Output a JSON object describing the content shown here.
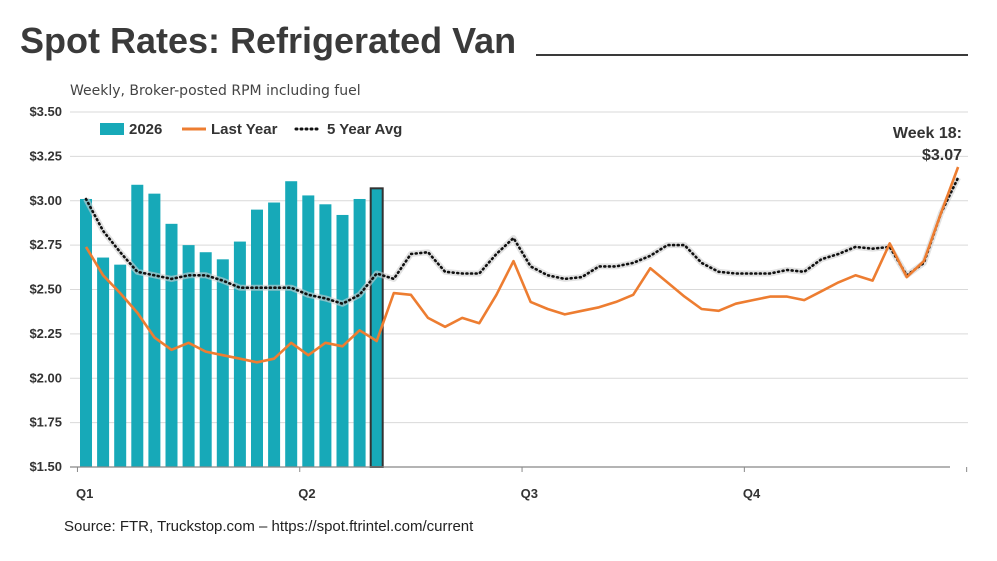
{
  "title": "Spot Rates: Refrigerated Van",
  "subtitle": "Weekly, Broker-posted RPM including fuel",
  "source": "Source: FTR, Truckstop.com – https://spot.ftrintel.com/current",
  "colors": {
    "bars": "#17a9b8",
    "last_year": "#ed7d31",
    "avg": "#111111",
    "grid": "#d9d9d9",
    "highlight_border": "#333333"
  },
  "chart_data": {
    "type": "bar",
    "ylim": [
      1.5,
      3.5
    ],
    "y_ticks": [
      "$1.50",
      "$1.75",
      "$2.00",
      "$2.25",
      "$2.50",
      "$2.75",
      "$3.00",
      "$3.25",
      "$3.50"
    ],
    "y_tick_values": [
      1.5,
      1.75,
      2.0,
      2.25,
      2.5,
      2.75,
      3.0,
      3.25,
      3.5
    ],
    "x_ticks": [
      "Q1",
      "Q2",
      "Q3",
      "Q4"
    ],
    "x_tick_weeks": [
      1,
      14,
      27,
      40
    ],
    "weeks": 52,
    "grid": true,
    "legend_position": "top-left",
    "legend": [
      "2026",
      "Last Year",
      "5 Year Avg"
    ],
    "series": [
      {
        "name": "2026",
        "kind": "bar",
        "weeks": [
          1,
          2,
          3,
          4,
          5,
          6,
          7,
          8,
          9,
          10,
          11,
          12,
          13,
          14,
          15,
          16,
          17,
          18
        ],
        "values": [
          3.01,
          2.68,
          2.64,
          3.09,
          3.04,
          2.87,
          2.75,
          2.71,
          2.67,
          2.77,
          2.95,
          2.99,
          3.11,
          3.03,
          2.98,
          2.92,
          3.01,
          3.07
        ],
        "highlight_week": 18
      },
      {
        "name": "Last Year",
        "kind": "line",
        "values": [
          2.74,
          2.58,
          2.48,
          2.37,
          2.23,
          2.16,
          2.2,
          2.15,
          2.13,
          2.11,
          2.09,
          2.11,
          2.2,
          2.13,
          2.2,
          2.18,
          2.27,
          2.21,
          2.48,
          2.47,
          2.34,
          2.29,
          2.34,
          2.31,
          2.47,
          2.66,
          2.43,
          2.39,
          2.36,
          2.38,
          2.4,
          2.43,
          2.47,
          2.62,
          2.54,
          2.46,
          2.39,
          2.38,
          2.42,
          2.44,
          2.46,
          2.46,
          2.44,
          2.49,
          2.54,
          2.58,
          2.55,
          2.76,
          2.57,
          2.66,
          2.93,
          3.19
        ]
      },
      {
        "name": "5 Year Avg",
        "kind": "dotted",
        "values": [
          3.01,
          2.83,
          2.71,
          2.6,
          2.58,
          2.56,
          2.58,
          2.58,
          2.55,
          2.51,
          2.51,
          2.51,
          2.51,
          2.47,
          2.45,
          2.42,
          2.47,
          2.59,
          2.56,
          2.7,
          2.71,
          2.6,
          2.59,
          2.59,
          2.7,
          2.79,
          2.63,
          2.58,
          2.56,
          2.57,
          2.63,
          2.63,
          2.65,
          2.69,
          2.75,
          2.75,
          2.65,
          2.6,
          2.59,
          2.59,
          2.59,
          2.61,
          2.6,
          2.67,
          2.7,
          2.74,
          2.73,
          2.74,
          2.58,
          2.65,
          2.93,
          3.13
        ]
      }
    ],
    "annotation": {
      "label": "Week 18:",
      "value": "$3.07"
    }
  }
}
